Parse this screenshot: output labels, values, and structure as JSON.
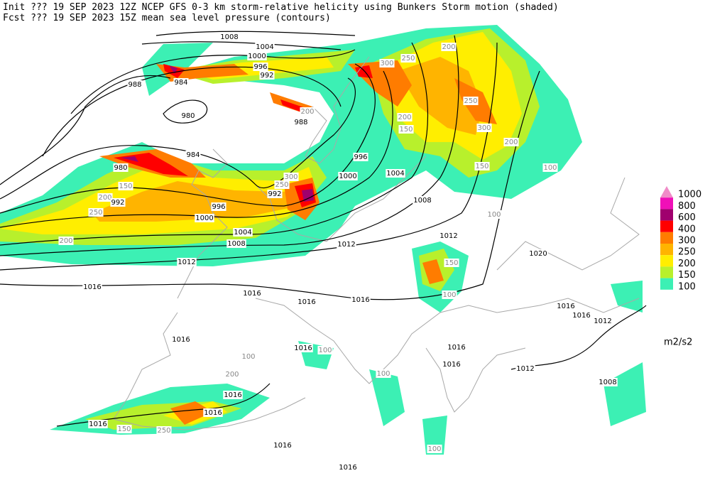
{
  "header": {
    "line1": "Init  ??? 19 SEP 2023 12Z  NCEP GFS 0-3 km storm-relative helicity using Bunkers Storm motion (shaded)",
    "line2": "Fcst ??? 19 SEP 2023 15Z  mean sea level pressure (contours)"
  },
  "legend": {
    "levels": [
      {
        "label": "1000",
        "color": "#f08cc8"
      },
      {
        "label": "800",
        "color": "#f010b8"
      },
      {
        "label": "600",
        "color": "#a0006e"
      },
      {
        "label": "400",
        "color": "#ff0000"
      },
      {
        "label": "300",
        "color": "#ff7c00"
      },
      {
        "label": "250",
        "color": "#ffb400"
      },
      {
        "label": "200",
        "color": "#ffee00"
      },
      {
        "label": "150",
        "color": "#b8f02c"
      },
      {
        "label": "100",
        "color": "#3cf0b4"
      }
    ],
    "units": "m2/s2"
  },
  "isobar_labels": [
    "1008",
    "1004",
    "1000",
    "996",
    "992",
    "988",
    "984",
    "980",
    "988",
    "984",
    "980",
    "992",
    "996",
    "1000",
    "1004",
    "1008",
    "1012",
    "1016",
    "1012",
    "992",
    "996",
    "1000",
    "1004",
    "1008",
    "1012",
    "1020",
    "1016",
    "1016",
    "1016",
    "1016",
    "1016",
    "1016",
    "1016",
    "1012",
    "1016",
    "1016",
    "1012",
    "1008",
    "1016",
    "1016",
    "1016",
    "1016",
    "1016"
  ],
  "helicity_labels": [
    "250",
    "200",
    "300",
    "250",
    "300",
    "200",
    "150",
    "100",
    "100",
    "200",
    "200",
    "150",
    "250",
    "300",
    "150",
    "200",
    "250",
    "200",
    "150",
    "100",
    "100",
    "100",
    "100",
    "200",
    "250",
    "150",
    "100"
  ]
}
